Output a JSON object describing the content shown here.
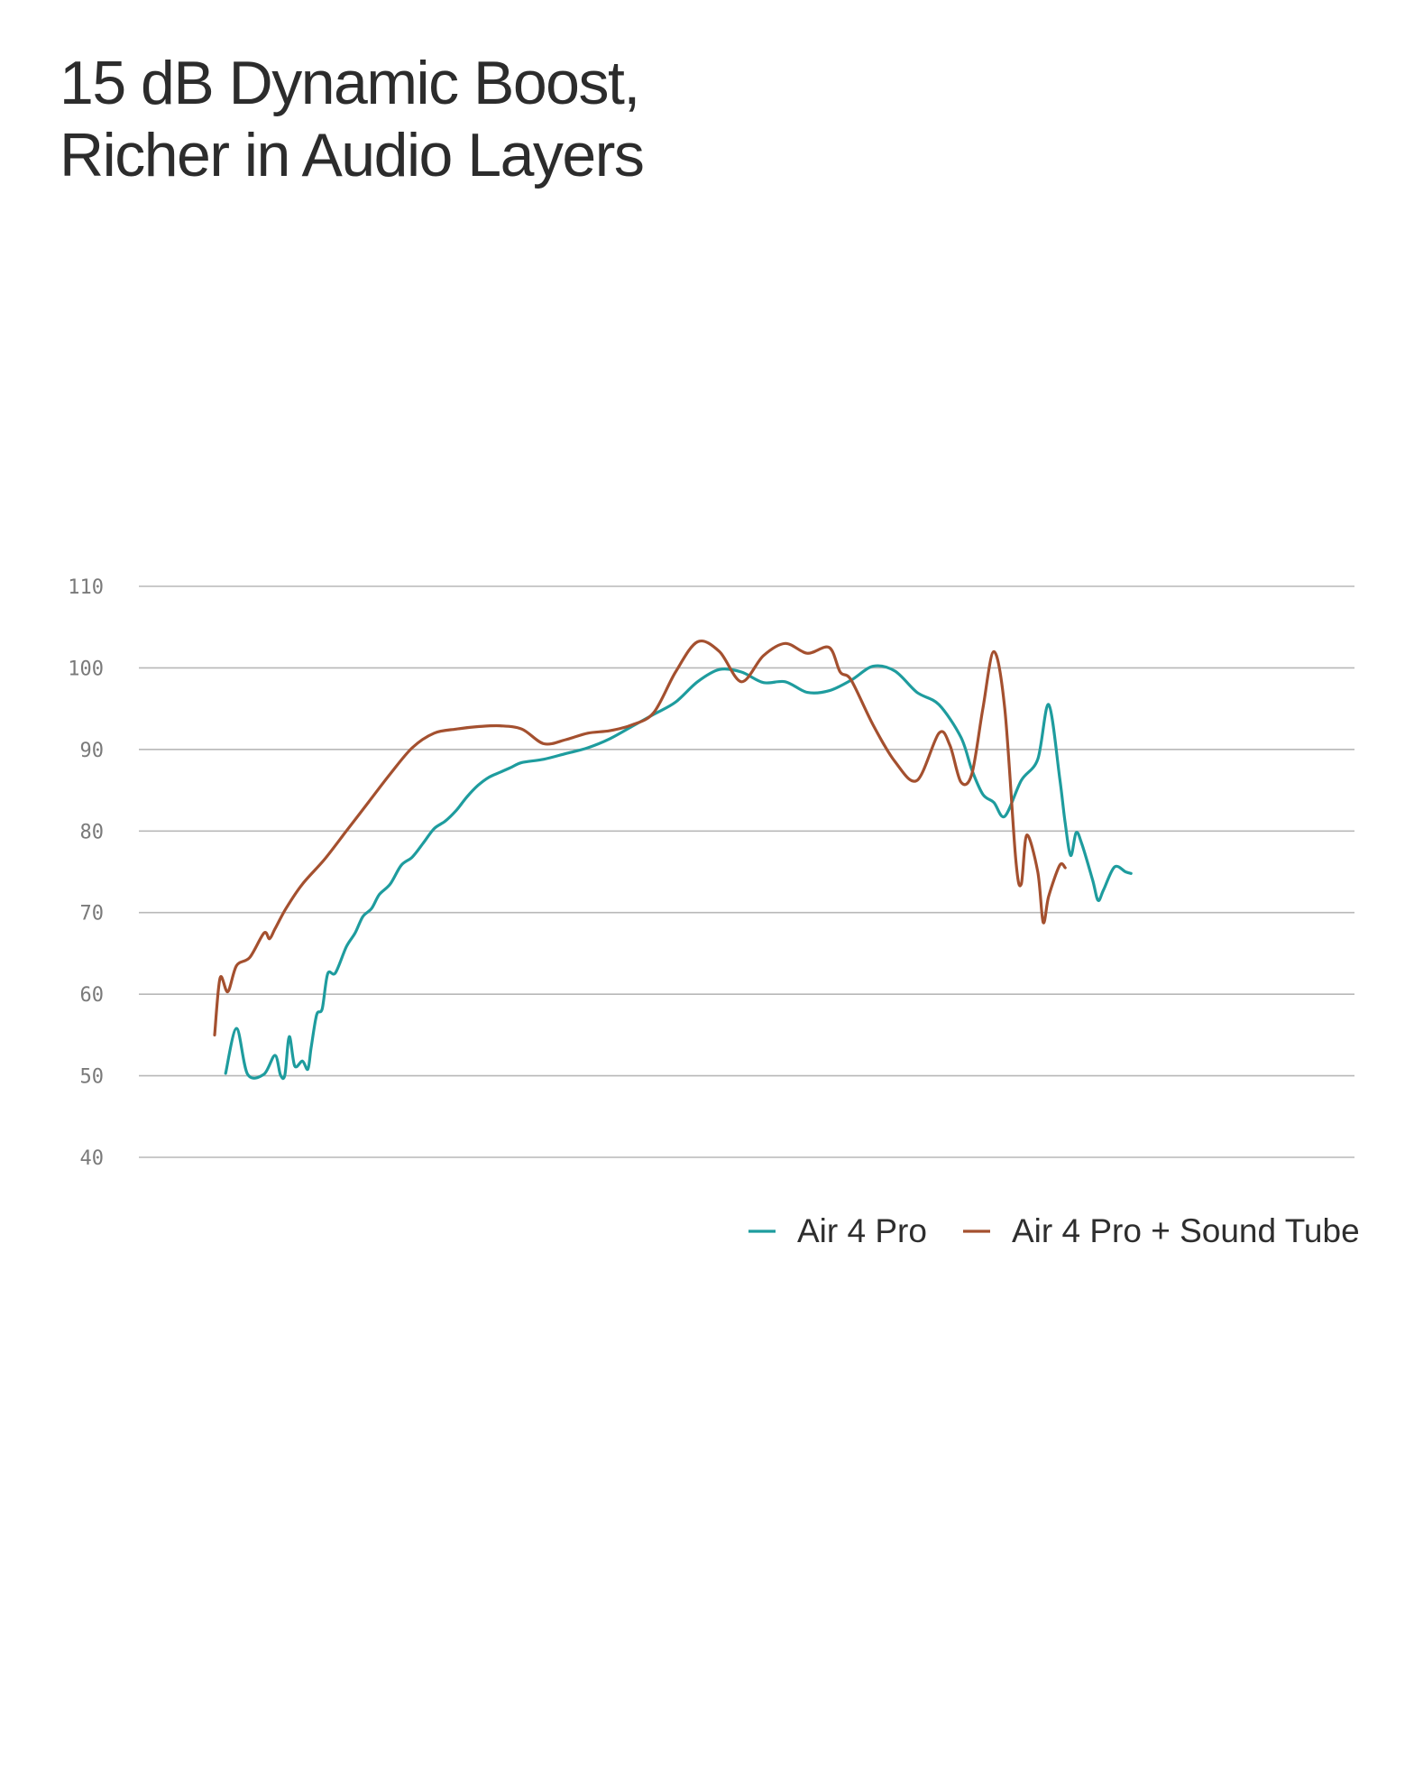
{
  "chart_data": {
    "type": "line",
    "title": [
      "15 dB Dynamic Boost,",
      "Richer in Audio Layers"
    ],
    "xlabel": "",
    "ylabel": "",
    "ylim": [
      40,
      110
    ],
    "yticks": [
      110,
      100,
      90,
      80,
      70,
      60,
      50,
      40
    ],
    "grid": true,
    "legend_position": "bottom-right",
    "series": [
      {
        "name": "Air 4 Pro",
        "color": "#1e9c9e",
        "x": [
          0.01,
          0.02,
          0.03,
          0.045,
          0.055,
          0.06,
          0.064,
          0.068,
          0.073,
          0.08,
          0.085,
          0.088,
          0.093,
          0.098,
          0.103,
          0.11,
          0.12,
          0.128,
          0.135,
          0.143,
          0.15,
          0.16,
          0.17,
          0.18,
          0.19,
          0.2,
          0.21,
          0.22,
          0.23,
          0.24,
          0.25,
          0.26,
          0.27,
          0.28,
          0.3,
          0.32,
          0.34,
          0.36,
          0.38,
          0.4,
          0.42,
          0.44,
          0.46,
          0.48,
          0.5,
          0.52,
          0.54,
          0.56,
          0.58,
          0.6,
          0.62,
          0.64,
          0.66,
          0.68,
          0.69,
          0.7,
          0.71,
          0.72,
          0.735,
          0.75,
          0.76,
          0.77,
          0.775,
          0.78,
          0.785,
          0.79,
          0.8,
          0.805,
          0.81,
          0.82,
          0.83,
          0.835,
          0.84,
          0.85,
          0.86,
          0.865,
          0.87,
          0.88,
          0.886,
          0.892,
          0.9,
          0.904,
          0.907,
          0.91,
          0.915,
          0.918,
          0.92,
          0.924,
          0.928,
          0.933,
          0.938,
          0.945,
          0.95
        ],
        "values": [
          50.3,
          55.8,
          50.2,
          50.2,
          52.5,
          50.1,
          50.1,
          54.8,
          51.2,
          51.8,
          50.8,
          53.5,
          57.5,
          58.2,
          62.5,
          62.6,
          65.8,
          67.5,
          69.5,
          70.5,
          72.2,
          73.5,
          75.8,
          76.8,
          78.5,
          80.3,
          81.2,
          82.5,
          84.2,
          85.6,
          86.6,
          87.2,
          87.8,
          88.4,
          88.8,
          89.5,
          90.2,
          91.3,
          92.8,
          94.3,
          95.8,
          98.3,
          99.8,
          99.5,
          98.2,
          98.3,
          97.0,
          97.2,
          98.5,
          100.2,
          99.6,
          97.0,
          95.5,
          91.5,
          87.5,
          84.5,
          83.5,
          81.8,
          86.2,
          88.8,
          95.5,
          86.5,
          81.0,
          77.0,
          79.8,
          78.5,
          74.0,
          71.5,
          72.8,
          75.6,
          75.0,
          74.8,
          74.8,
          74.8,
          74.8,
          74.8,
          74.8,
          74.8,
          74.8,
          74.8,
          74.8,
          74.8,
          74.8,
          74.8,
          74.8,
          74.8,
          74.8,
          74.8,
          74.8,
          74.8,
          74.8,
          74.8,
          74.8
        ]
      },
      {
        "name": "Air 4 Pro + Sound Tube",
        "color": "#a4502f",
        "x": [
          0.0,
          0.005,
          0.012,
          0.02,
          0.032,
          0.045,
          0.05,
          0.055,
          0.065,
          0.08,
          0.1,
          0.12,
          0.14,
          0.16,
          0.18,
          0.2,
          0.22,
          0.24,
          0.26,
          0.28,
          0.3,
          0.32,
          0.34,
          0.36,
          0.38,
          0.4,
          0.42,
          0.44,
          0.46,
          0.48,
          0.5,
          0.52,
          0.54,
          0.56,
          0.57,
          0.58,
          0.6,
          0.62,
          0.64,
          0.66,
          0.67,
          0.68,
          0.69,
          0.7,
          0.71,
          0.72,
          0.73,
          0.735,
          0.74,
          0.75,
          0.755,
          0.76,
          0.77,
          0.775,
          0.78,
          0.79,
          0.8,
          0.81,
          0.815,
          0.82,
          0.825,
          0.83,
          0.835
        ],
        "values": [
          55.0,
          62.0,
          60.3,
          63.5,
          64.5,
          67.5,
          66.8,
          68.0,
          70.5,
          73.5,
          76.5,
          80.0,
          83.5,
          87.0,
          90.2,
          92.0,
          92.5,
          92.8,
          92.9,
          92.5,
          90.7,
          91.2,
          92.0,
          92.3,
          93.0,
          94.5,
          99.5,
          103.2,
          102.0,
          98.3,
          101.5,
          103.0,
          101.8,
          102.5,
          99.5,
          98.5,
          93.0,
          88.5,
          86.2,
          92.0,
          90.5,
          86.0,
          87.0,
          95.0,
          102.0,
          95.0,
          76.5,
          73.5,
          79.5,
          75.0,
          68.8,
          72.0,
          75.8,
          75.5,
          75.5,
          75.5,
          75.5,
          75.5,
          75.5,
          75.5,
          75.5,
          75.5,
          75.5
        ]
      }
    ]
  }
}
